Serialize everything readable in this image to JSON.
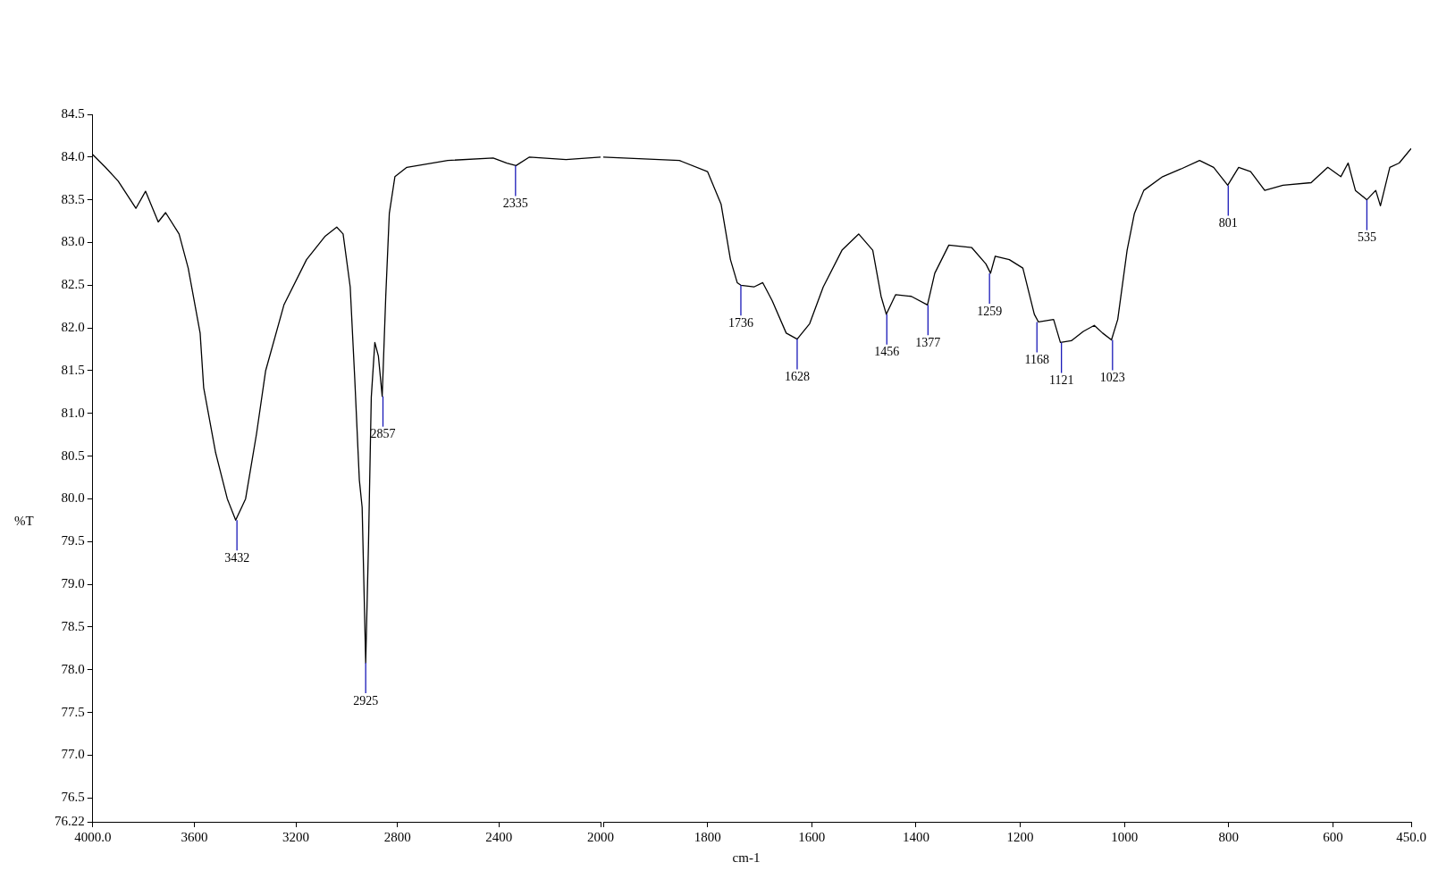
{
  "chart_data": [
    {
      "type": "line",
      "ylabel": "%T",
      "color": "#000000",
      "grid": false,
      "legend": false,
      "marker": "none",
      "xlim": [
        4000,
        2000
      ],
      "ylim": [
        76.22,
        84.5
      ],
      "xticks": [
        {
          "value": 4000,
          "label": "4000.0"
        },
        3600,
        3200,
        2800,
        2400,
        2000
      ],
      "yticks": [
        76.22,
        76.5,
        {
          "value": 77,
          "label": "77.0"
        },
        77.5,
        {
          "value": 78,
          "label": "78.0"
        },
        78.5,
        {
          "value": 79,
          "label": "79.0"
        },
        79.5,
        {
          "value": 80,
          "label": "80.0"
        },
        80.5,
        {
          "value": 81,
          "label": "81.0"
        },
        81.5,
        {
          "value": 82,
          "label": "82.0"
        },
        82.5,
        {
          "value": 83,
          "label": "83.0"
        },
        83.5,
        {
          "value": 84,
          "label": "84.0"
        },
        84.5
      ],
      "x": [
        4000,
        3950,
        3900,
        3830,
        3792,
        3742,
        3713,
        3660,
        3624,
        3577,
        3563,
        3516,
        3470,
        3437,
        3398,
        3355,
        3319,
        3247,
        3158,
        3086,
        3039,
        3014,
        2986,
        2968,
        2950,
        2939,
        2925,
        2914,
        2903,
        2889,
        2875,
        2860,
        2846,
        2832,
        2810,
        2763,
        2602,
        2423,
        2369,
        2333,
        2280,
        2136,
        2000
      ],
      "values": [
        84.03,
        83.88,
        83.72,
        83.4,
        83.6,
        83.24,
        83.35,
        83.1,
        82.7,
        81.94,
        81.3,
        80.54,
        80.0,
        79.75,
        80.0,
        80.76,
        81.5,
        82.27,
        82.8,
        83.07,
        83.18,
        83.1,
        82.48,
        81.4,
        80.22,
        79.9,
        78.08,
        79.47,
        81.19,
        81.83,
        81.67,
        81.2,
        82.37,
        83.34,
        83.77,
        83.88,
        83.96,
        83.99,
        83.93,
        83.9,
        84.0,
        83.97,
        84.0
      ],
      "annotations": [
        {
          "text": "3432",
          "x": 3432,
          "y": 79.75
        },
        {
          "text": "2925",
          "x": 2925,
          "y": 78.08
        },
        {
          "text": "2857",
          "x": 2857,
          "y": 81.2
        },
        {
          "text": "2335",
          "x": 2335,
          "y": 83.9
        }
      ]
    },
    {
      "type": "line",
      "xlabel": "cm-1",
      "color": "#000000",
      "grid": false,
      "legend": false,
      "marker": "none",
      "tick_labels": "x",
      "xlim": [
        2000,
        450
      ],
      "ylim": [
        76.22,
        84.5
      ],
      "xticks": [
        {
          "value": 2000,
          "label": null
        },
        1800,
        1600,
        1400,
        1200,
        1000,
        800,
        600,
        {
          "value": 450,
          "label": "450.0"
        }
      ],
      "x": [
        2000,
        1961,
        1854,
        1800,
        1774,
        1756,
        1743,
        1736,
        1711,
        1694,
        1676,
        1649,
        1628,
        1604,
        1578,
        1542,
        1510,
        1483,
        1467,
        1457,
        1439,
        1409,
        1378,
        1364,
        1337,
        1293,
        1266,
        1257,
        1248,
        1221,
        1195,
        1173,
        1165,
        1136,
        1123,
        1102,
        1079,
        1058,
        1042,
        1025,
        1013,
        995,
        981,
        963,
        927,
        892,
        856,
        829,
        802,
        781,
        758,
        731,
        696,
        642,
        610,
        585,
        571,
        557,
        535,
        518,
        509,
        491,
        473,
        450
      ],
      "values": [
        84.0,
        83.99,
        83.96,
        83.83,
        83.45,
        82.8,
        82.53,
        82.5,
        82.48,
        82.53,
        82.32,
        81.94,
        81.87,
        82.05,
        82.48,
        82.91,
        83.1,
        82.91,
        82.37,
        82.16,
        82.39,
        82.37,
        82.27,
        82.64,
        82.97,
        82.94,
        82.75,
        82.64,
        82.84,
        82.8,
        82.7,
        82.16,
        82.07,
        82.1,
        81.83,
        81.85,
        81.96,
        82.03,
        81.94,
        81.86,
        82.1,
        82.91,
        83.34,
        83.61,
        83.77,
        83.86,
        83.96,
        83.88,
        83.67,
        83.88,
        83.83,
        83.61,
        83.67,
        83.7,
        83.88,
        83.77,
        83.93,
        83.61,
        83.5,
        83.61,
        83.43,
        83.88,
        83.93,
        84.1
      ],
      "annotations": [
        {
          "text": "1736",
          "x": 1736,
          "y": 82.5
        },
        {
          "text": "1628",
          "x": 1628,
          "y": 81.87
        },
        {
          "text": "1456",
          "x": 1456,
          "y": 82.16
        },
        {
          "text": "1377",
          "x": 1377,
          "y": 82.27
        },
        {
          "text": "1259",
          "x": 1259,
          "y": 82.64
        },
        {
          "text": "1168",
          "x": 1168,
          "y": 82.07
        },
        {
          "text": "1121",
          "x": 1121,
          "y": 81.83
        },
        {
          "text": "1023",
          "x": 1023,
          "y": 81.86
        },
        {
          "text": "801",
          "x": 801,
          "y": 83.67
        },
        {
          "text": "535",
          "x": 535,
          "y": 83.5
        }
      ]
    }
  ]
}
